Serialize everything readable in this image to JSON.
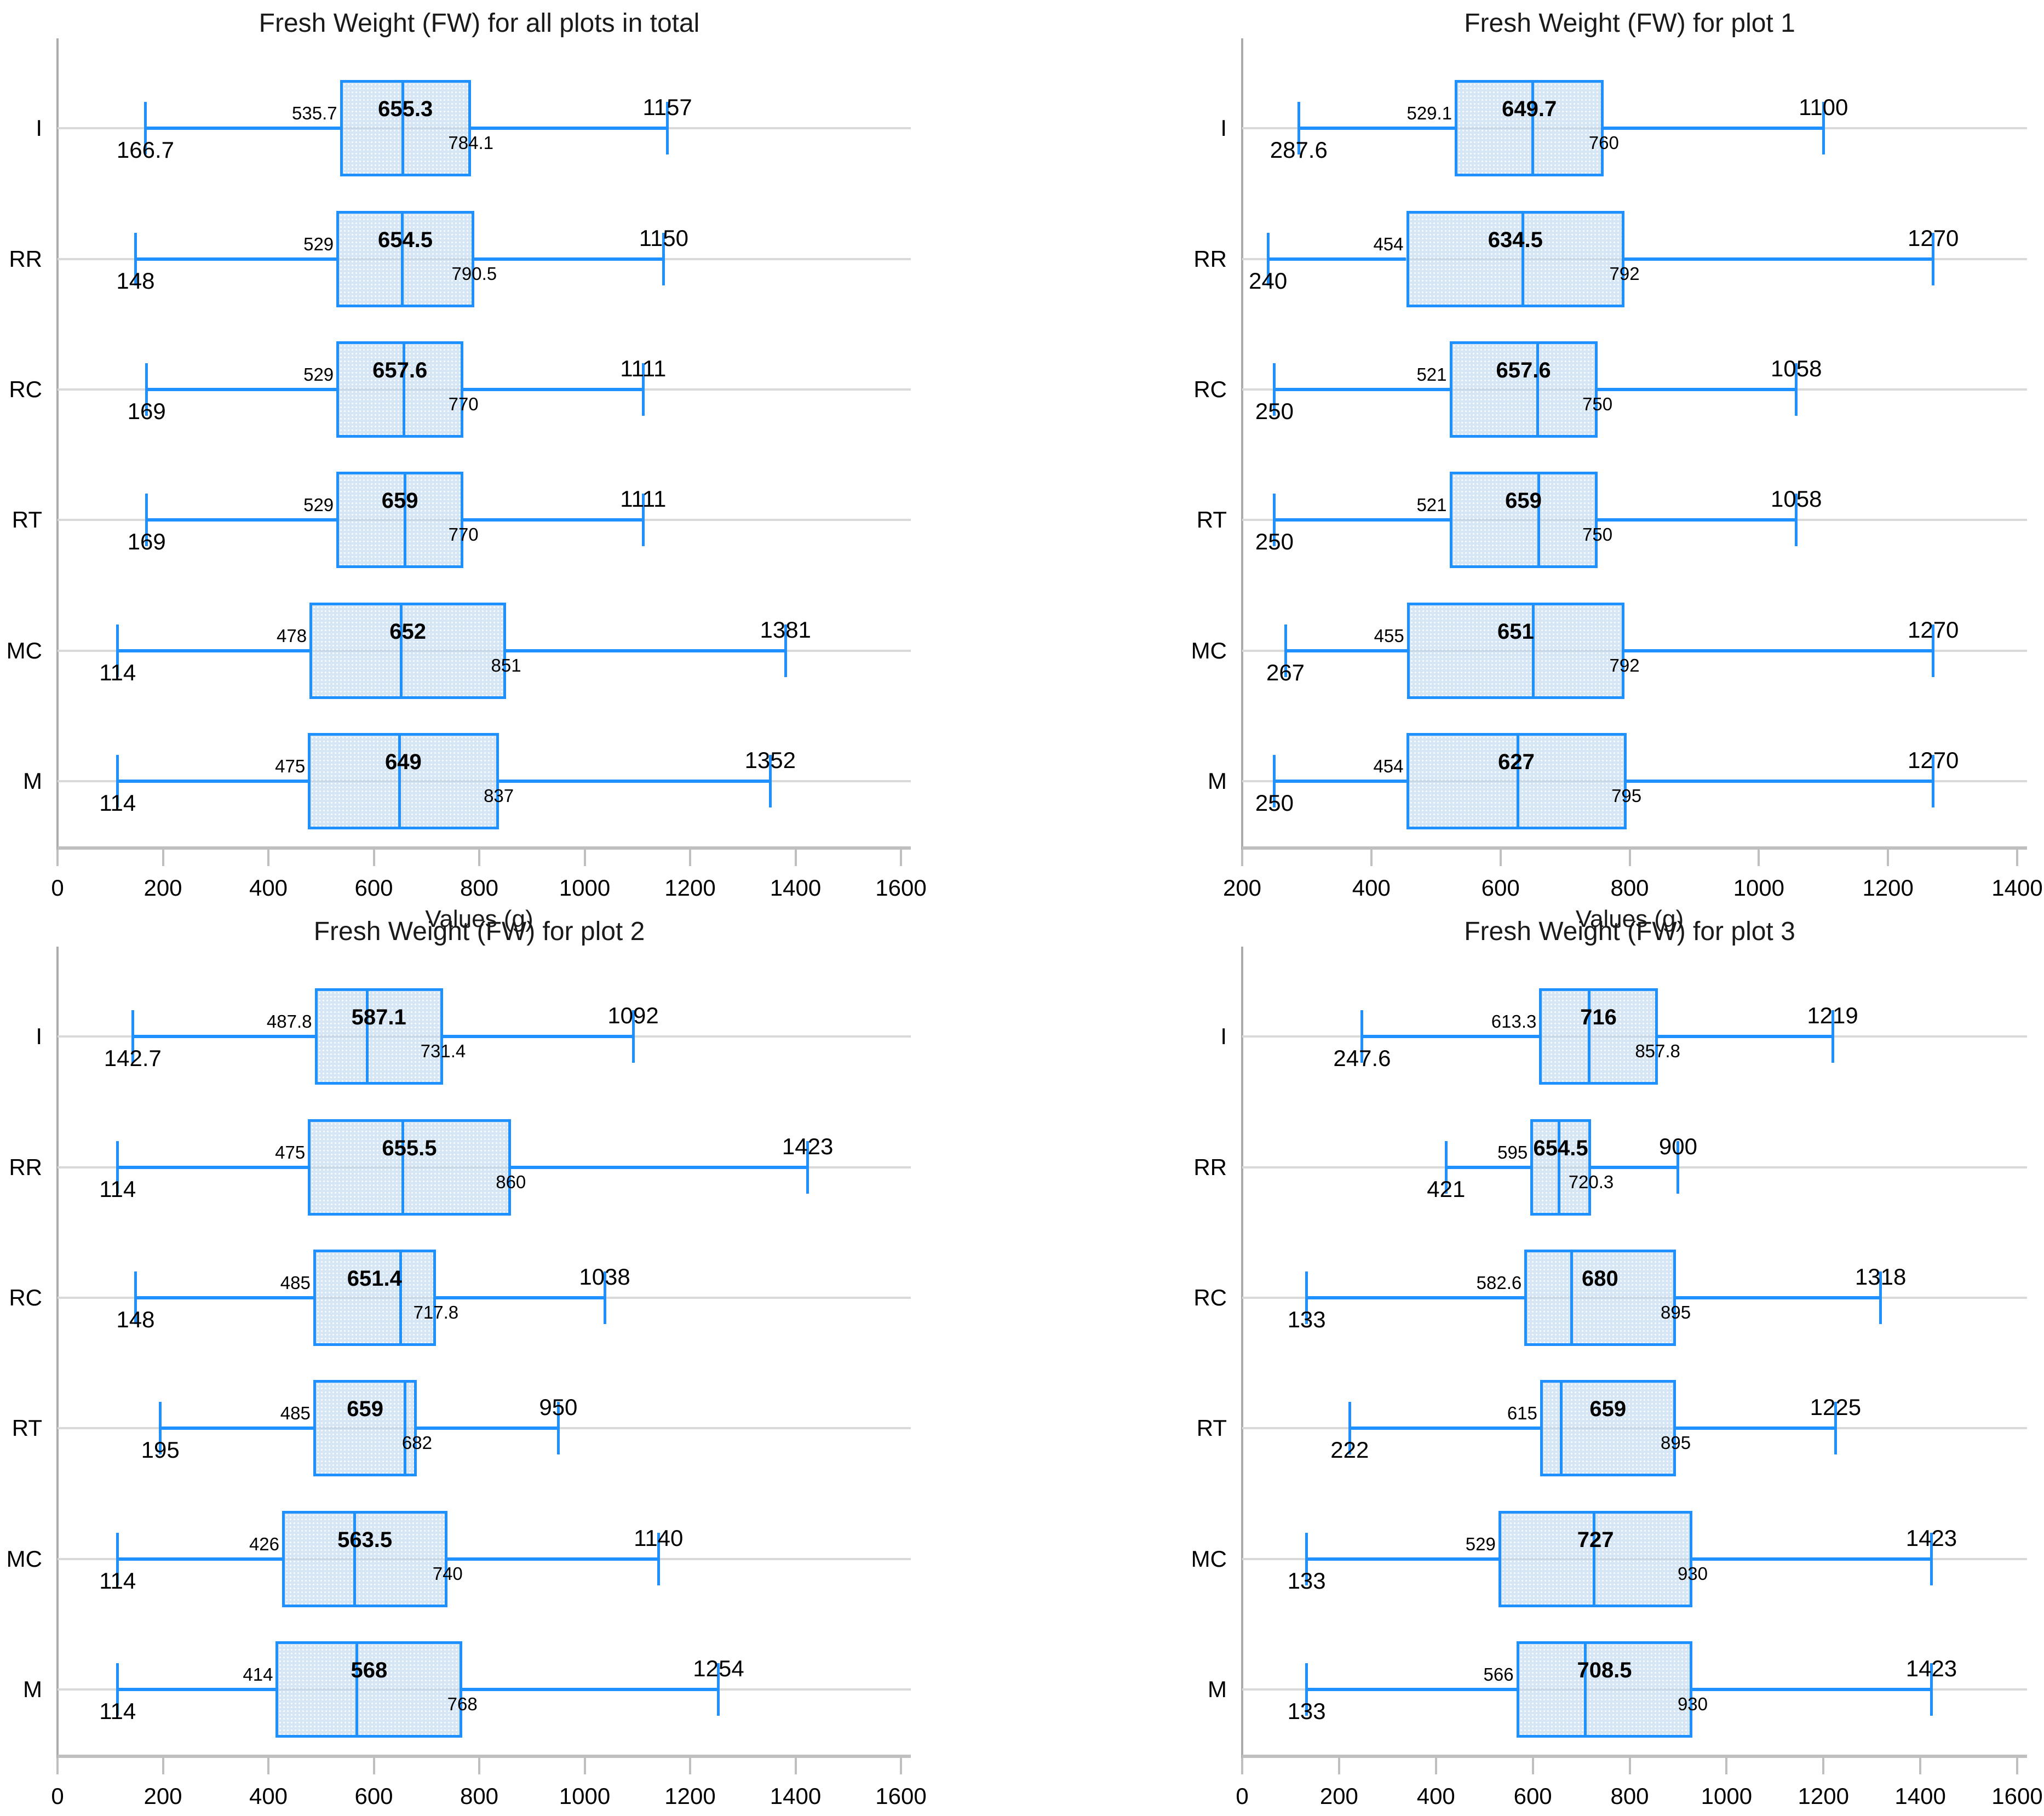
{
  "colors": {
    "box_blue": "#1e90ff",
    "box_fill_light_blue": "#bdd7ee",
    "gridline_gray": "#d9d9d9",
    "axis_gray": "#bfbfbf",
    "text_black": "#1a1a1a"
  },
  "chart_data": [
    {
      "type": "box",
      "title": "Fresh Weight (FW) for all plots in total",
      "xlabel": "Values (g)",
      "xlim": [
        0,
        1600
      ],
      "xtick_step": 200,
      "grid": "horizontal",
      "categories": [
        "I",
        "RR",
        "RC",
        "RT",
        "MC",
        "M"
      ],
      "rows": [
        {
          "label": "I",
          "min": 166.7,
          "q1": 535.7,
          "median": 655.3,
          "q3": 784.1,
          "max": 1157
        },
        {
          "label": "RR",
          "min": 148,
          "q1": 529,
          "median": 654.5,
          "q3": 790.5,
          "max": 1150
        },
        {
          "label": "RC",
          "min": 169,
          "q1": 529,
          "median": 657.6,
          "q3": 770,
          "max": 1111
        },
        {
          "label": "RT",
          "min": 169,
          "q1": 529,
          "median": 659,
          "q3": 770,
          "max": 1111
        },
        {
          "label": "MC",
          "min": 114,
          "q1": 478,
          "median": 652,
          "q3": 851,
          "max": 1381
        },
        {
          "label": "M",
          "min": 114,
          "q1": 475,
          "median": 649,
          "q3": 837,
          "max": 1352
        }
      ]
    },
    {
      "type": "box",
      "title": "Fresh Weight (FW) for plot 1",
      "xlabel": "Values (g)",
      "xlim": [
        200,
        1400
      ],
      "xtick_step": 200,
      "grid": "horizontal",
      "categories": [
        "I",
        "RR",
        "RC",
        "RT",
        "MC",
        "M"
      ],
      "rows": [
        {
          "label": "I",
          "min": 287.6,
          "q1": 529.1,
          "median": 649.7,
          "q3": 760,
          "max": 1100
        },
        {
          "label": "RR",
          "min": 240,
          "q1": 454,
          "median": 634.5,
          "q3": 792,
          "max": 1270
        },
        {
          "label": "RC",
          "min": 250,
          "q1": 521,
          "median": 657.6,
          "q3": 750,
          "max": 1058
        },
        {
          "label": "RT",
          "min": 250,
          "q1": 521,
          "median": 659,
          "q3": 750,
          "max": 1058
        },
        {
          "label": "MC",
          "min": 267,
          "q1": 455,
          "median": 651,
          "q3": 792,
          "max": 1270
        },
        {
          "label": "M",
          "min": 250,
          "q1": 454,
          "median": 627,
          "q3": 795,
          "max": 1270
        }
      ]
    },
    {
      "type": "box",
      "title": "Fresh Weight (FW) for plot 2",
      "xlabel": "Values (g)",
      "xlim": [
        0,
        1600
      ],
      "xtick_step": 200,
      "grid": "horizontal",
      "categories": [
        "I",
        "RR",
        "RC",
        "RT",
        "MC",
        "M"
      ],
      "rows": [
        {
          "label": "I",
          "min": 142.7,
          "q1": 487.8,
          "median": 587.1,
          "q3": 731.4,
          "max": 1092
        },
        {
          "label": "RR",
          "min": 114,
          "q1": 475,
          "median": 655.5,
          "q3": 860,
          "max": 1423
        },
        {
          "label": "RC",
          "min": 148,
          "q1": 485,
          "median": 651.4,
          "q3": 717.8,
          "max": 1038
        },
        {
          "label": "RT",
          "min": 195,
          "q1": 485,
          "median": 659,
          "q3": 682,
          "max": 950
        },
        {
          "label": "MC",
          "min": 114,
          "q1": 426,
          "median": 563.5,
          "q3": 740,
          "max": 1140
        },
        {
          "label": "M",
          "min": 114,
          "q1": 414,
          "median": 568,
          "q3": 768,
          "max": 1254
        }
      ]
    },
    {
      "type": "box",
      "title": "Fresh Weight (FW) for plot 3",
      "xlabel": "Values (g)",
      "xlim": [
        0,
        1600
      ],
      "xtick_step": 200,
      "grid": "horizontal",
      "categories": [
        "I",
        "RR",
        "RC",
        "RT",
        "MC",
        "M"
      ],
      "rows": [
        {
          "label": "I",
          "min": 247.6,
          "q1": 613.3,
          "median": 716,
          "q3": 857.8,
          "max": 1219
        },
        {
          "label": "RR",
          "min": 421,
          "q1": 595,
          "median": 654.5,
          "q3": 720.3,
          "max": 900
        },
        {
          "label": "RC",
          "min": 133,
          "q1": 582.6,
          "median": 680,
          "q3": 895,
          "max": 1318
        },
        {
          "label": "RT",
          "min": 222,
          "q1": 615,
          "median": 659,
          "q3": 895,
          "max": 1225
        },
        {
          "label": "MC",
          "min": 133,
          "q1": 529,
          "median": 727,
          "q3": 930,
          "max": 1423
        },
        {
          "label": "M",
          "min": 133,
          "q1": 566,
          "median": 708.5,
          "q3": 930,
          "max": 1423
        }
      ]
    }
  ]
}
